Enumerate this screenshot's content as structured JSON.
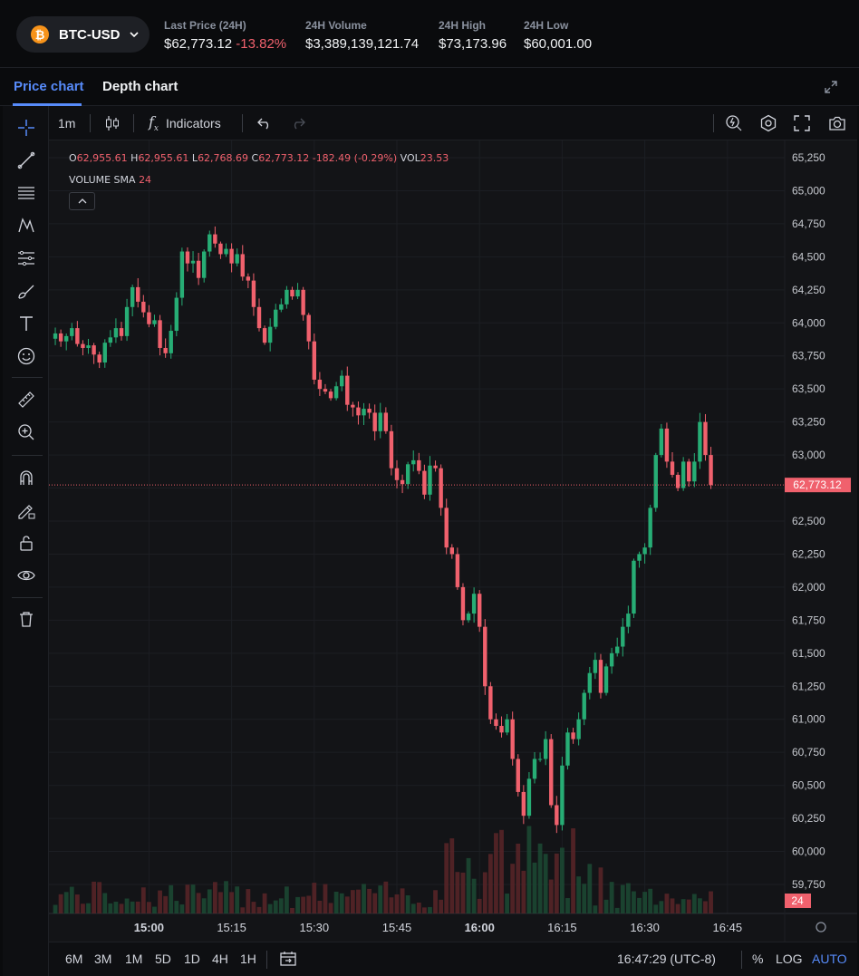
{
  "header": {
    "pair": "BTC-USD",
    "coin_icon": "bitcoin-icon",
    "stats": [
      {
        "label": "Last Price (24H)",
        "value": "$62,773.12",
        "change": "-13.82%"
      },
      {
        "label": "24H Volume",
        "value": "$3,389,139,121.74"
      },
      {
        "label": "24H High",
        "value": "$73,173.96"
      },
      {
        "label": "24H Low",
        "value": "$60,001.00"
      }
    ]
  },
  "tabs": {
    "price": "Price chart",
    "depth": "Depth chart",
    "active": "price"
  },
  "toolbar": {
    "interval": "1m",
    "indicators": "Indicators"
  },
  "legend": {
    "o_label": "O",
    "o": "62,955.61",
    "h_label": "H",
    "h": "62,955.61",
    "l_label": "L",
    "l": "62,768.69",
    "c_label": "C",
    "c": "62,773.12",
    "chg": "-182.49 (-0.29%)",
    "vol_label": "VOL",
    "vol": "23.53",
    "sma_label": "VOLUME SMA",
    "sma": "24"
  },
  "bottom": {
    "timeframes": [
      "6M",
      "3M",
      "1M",
      "5D",
      "1D",
      "4H",
      "1H"
    ],
    "clock": "16:47:29 (UTC-8)",
    "pct": "%",
    "log": "LOG",
    "auto": "AUTO"
  },
  "colors": {
    "up": "#27ad75",
    "down": "#f0616d",
    "accent": "#578bfa",
    "bg": "#131417"
  },
  "chart_data": {
    "type": "candlestick",
    "interval": "1m",
    "y_ticks": [
      59750,
      60000,
      60250,
      60500,
      60750,
      61000,
      61250,
      61500,
      61750,
      62000,
      62250,
      62500,
      62750,
      63000,
      63250,
      63500,
      63750,
      64000,
      64250,
      64500,
      64750,
      65000,
      65250
    ],
    "y_tick_labels": [
      "59,750",
      "60,000",
      "60,250",
      "60,500",
      "60,750",
      "61,000",
      "61,250",
      "61,500",
      "61,750",
      "62,000",
      "62,250",
      "62,500",
      "",
      "63,000",
      "63,250",
      "63,500",
      "63,750",
      "64,000",
      "64,250",
      "64,500",
      "64,750",
      "65,000",
      "65,250"
    ],
    "x_ticks": [
      {
        "label": "15:00",
        "minute": 900,
        "bold": true
      },
      {
        "label": "15:15",
        "minute": 915,
        "bold": false
      },
      {
        "label": "15:30",
        "minute": 930,
        "bold": false
      },
      {
        "label": "15:45",
        "minute": 945,
        "bold": false
      },
      {
        "label": "16:00",
        "minute": 960,
        "bold": true
      },
      {
        "label": "16:15",
        "minute": 975,
        "bold": false
      },
      {
        "label": "16:30",
        "minute": 990,
        "bold": false
      },
      {
        "label": "16:45",
        "minute": 1005,
        "bold": false
      }
    ],
    "first_minute": 883,
    "last_price": 62773.12,
    "last_price_label": "62,773.12",
    "volume_badge": "24",
    "ylim": [
      59570,
      65350
    ],
    "closes": [
      63920,
      63860,
      63900,
      63960,
      63840,
      63810,
      63830,
      63760,
      63700,
      63850,
      63890,
      63960,
      63900,
      64120,
      64270,
      64160,
      64080,
      63990,
      64020,
      63810,
      63770,
      63940,
      64190,
      64540,
      64450,
      64470,
      64340,
      64540,
      64670,
      64600,
      64520,
      64560,
      64450,
      64520,
      64350,
      64320,
      64120,
      63960,
      63850,
      63970,
      64100,
      64140,
      64250,
      64200,
      64250,
      64060,
      63860,
      63570,
      63500,
      63480,
      63430,
      63520,
      63600,
      63380,
      63360,
      63300,
      63350,
      63320,
      63180,
      63320,
      63180,
      62900,
      62810,
      62780,
      62930,
      62960,
      62880,
      62700,
      62920,
      62900,
      62600,
      62300,
      62250,
      62000,
      61750,
      61800,
      61950,
      61700,
      61250,
      61000,
      60950,
      60900,
      61000,
      60700,
      60450,
      60270,
      60550,
      60700,
      60700,
      60850,
      60350,
      60200,
      60650,
      60900,
      60850,
      61000,
      61200,
      61350,
      61450,
      61200,
      61400,
      61500,
      61550,
      61700,
      61800,
      62200,
      62250,
      62300,
      62600,
      63000,
      63200,
      62950,
      62850,
      62750,
      62950,
      62800,
      62950,
      63250,
      63000,
      62773
    ]
  }
}
